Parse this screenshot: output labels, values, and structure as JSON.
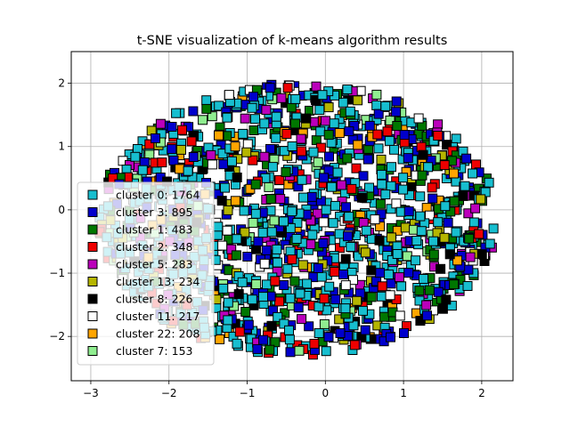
{
  "chart_data": {
    "type": "scatter",
    "title": "t-SNE visualization of k-means algorithm results",
    "xlabel": "",
    "ylabel": "",
    "xlim": [
      -3.25,
      2.4
    ],
    "ylim": [
      -2.7,
      2.5
    ],
    "xticks": [
      -3,
      -2,
      -1,
      0,
      1,
      2
    ],
    "yticks": [
      -2,
      -1,
      0,
      1,
      2
    ],
    "grid": true,
    "legend_position": "lower-left",
    "marker": "square",
    "marker_edge_color": "#000000",
    "series": [
      {
        "name": "cluster 0: 1764",
        "color": "#17becf",
        "count": 1764
      },
      {
        "name": "cluster 3: 895",
        "color": "#0000cc",
        "count": 895
      },
      {
        "name": "cluster 1: 483",
        "color": "#007700",
        "count": 483
      },
      {
        "name": "cluster 2: 348",
        "color": "#ee0000",
        "count": 348
      },
      {
        "name": "cluster 5: 283",
        "color": "#bb00bb",
        "count": 283
      },
      {
        "name": "cluster 13: 234",
        "color": "#b5b500",
        "count": 234
      },
      {
        "name": "cluster 8: 226",
        "color": "#000000",
        "count": 226
      },
      {
        "name": "cluster 11: 217",
        "color": "#ffffff",
        "count": 217
      },
      {
        "name": "cluster 22: 208",
        "color": "#ffa500",
        "count": 208
      },
      {
        "name": "cluster 7: 153",
        "color": "#90ee90",
        "count": 153
      }
    ]
  }
}
